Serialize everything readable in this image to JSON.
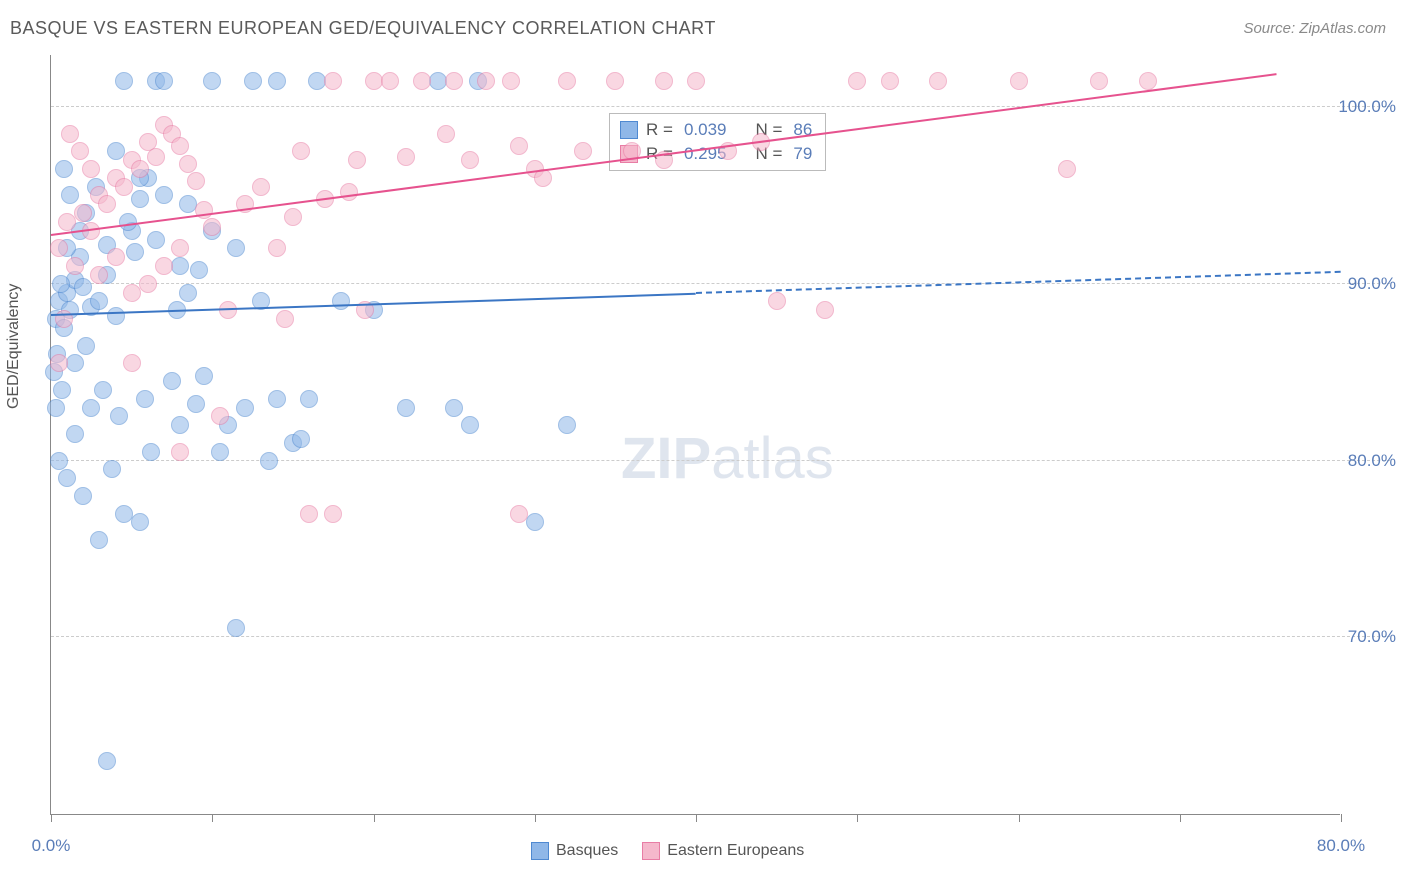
{
  "title": "BASQUE VS EASTERN EUROPEAN GED/EQUIVALENCY CORRELATION CHART",
  "source": "Source: ZipAtlas.com",
  "ylabel": "GED/Equivalency",
  "watermark_a": "ZIP",
  "watermark_b": "atlas",
  "chart": {
    "type": "scatter",
    "xlim": [
      0,
      80
    ],
    "ylim": [
      60,
      103
    ],
    "yticks": [
      70,
      80,
      90,
      100
    ],
    "ytick_labels": [
      "70.0%",
      "80.0%",
      "90.0%",
      "100.0%"
    ],
    "xticks": [
      0,
      10,
      20,
      30,
      40,
      50,
      60,
      70,
      80
    ],
    "xtick_labels_shown": {
      "0": "0.0%",
      "80": "80.0%"
    },
    "background": "#ffffff",
    "grid_color": "#cccccc",
    "axis_color": "#888888",
    "label_color": "#5a7db8",
    "point_radius": 9,
    "point_opacity": 0.55,
    "series": [
      {
        "name": "Basques",
        "fill": "#8fb7e8",
        "stroke": "#4f89d1",
        "trend_color": "#3b76c4",
        "trend": {
          "x1": 0,
          "y1": 88.2,
          "x2": 40,
          "y2": 89.4,
          "dash_to_x": 80,
          "dash_to_y": 90.6
        },
        "R": "0.039",
        "N": "86",
        "points": [
          [
            0.5,
            89.0
          ],
          [
            0.3,
            88.0
          ],
          [
            1.0,
            89.5
          ],
          [
            0.8,
            87.5
          ],
          [
            1.5,
            90.2
          ],
          [
            1.2,
            88.5
          ],
          [
            0.4,
            86.0
          ],
          [
            0.2,
            85.0
          ],
          [
            2.0,
            89.8
          ],
          [
            2.5,
            88.7
          ],
          [
            1.8,
            91.5
          ],
          [
            0.6,
            90.0
          ],
          [
            1.0,
            92.0
          ],
          [
            3.0,
            89.0
          ],
          [
            3.5,
            90.5
          ],
          [
            4.0,
            88.2
          ],
          [
            2.2,
            94.0
          ],
          [
            2.8,
            95.5
          ],
          [
            5.0,
            93.0
          ],
          [
            5.5,
            94.8
          ],
          [
            6.0,
            96.0
          ],
          [
            6.5,
            101.5
          ],
          [
            7.0,
            101.5
          ],
          [
            4.5,
            101.5
          ],
          [
            3.2,
            84.0
          ],
          [
            4.2,
            82.5
          ],
          [
            2.5,
            83.0
          ],
          [
            1.5,
            81.5
          ],
          [
            5.8,
            83.5
          ],
          [
            7.5,
            84.5
          ],
          [
            8.0,
            82.0
          ],
          [
            6.2,
            80.5
          ],
          [
            3.8,
            79.5
          ],
          [
            2.0,
            78.0
          ],
          [
            1.0,
            79.0
          ],
          [
            0.5,
            80.0
          ],
          [
            9.0,
            83.2
          ],
          [
            9.5,
            84.8
          ],
          [
            10.5,
            80.5
          ],
          [
            11.0,
            82.0
          ],
          [
            8.5,
            89.5
          ],
          [
            9.2,
            90.8
          ],
          [
            7.8,
            88.5
          ],
          [
            12.0,
            83.0
          ],
          [
            13.0,
            89.0
          ],
          [
            14.0,
            83.5
          ],
          [
            15.0,
            81.0
          ],
          [
            15.5,
            81.2
          ],
          [
            8.0,
            91.0
          ],
          [
            6.5,
            92.5
          ],
          [
            5.2,
            91.8
          ],
          [
            4.8,
            93.5
          ],
          [
            3.5,
            92.2
          ],
          [
            1.8,
            93.0
          ],
          [
            1.2,
            95.0
          ],
          [
            0.8,
            96.5
          ],
          [
            11.5,
            70.5
          ],
          [
            3.0,
            75.5
          ],
          [
            4.5,
            77.0
          ],
          [
            5.5,
            76.5
          ],
          [
            2.2,
            86.5
          ],
          [
            1.5,
            85.5
          ],
          [
            0.7,
            84.0
          ],
          [
            0.3,
            83.0
          ],
          [
            13.5,
            80.0
          ],
          [
            16.0,
            83.5
          ],
          [
            18.0,
            89.0
          ],
          [
            20.0,
            88.5
          ],
          [
            22.0,
            83.0
          ],
          [
            25.0,
            83.0
          ],
          [
            26.0,
            82.0
          ],
          [
            30.0,
            76.5
          ],
          [
            32.0,
            82.0
          ],
          [
            3.5,
            63.0
          ],
          [
            10.0,
            101.5
          ],
          [
            12.5,
            101.5
          ],
          [
            14.0,
            101.5
          ],
          [
            16.5,
            101.5
          ],
          [
            24.0,
            101.5
          ],
          [
            26.5,
            101.5
          ],
          [
            4.0,
            97.5
          ],
          [
            5.5,
            96.0
          ],
          [
            7.0,
            95.0
          ],
          [
            8.5,
            94.5
          ],
          [
            10.0,
            93.0
          ],
          [
            11.5,
            92.0
          ]
        ]
      },
      {
        "name": "Eastern Europeans",
        "fill": "#f5b8cc",
        "stroke": "#e87da5",
        "trend_color": "#e6528e",
        "trend": {
          "x1": 0,
          "y1": 92.7,
          "x2": 76,
          "y2": 101.8
        },
        "R": "0.295",
        "N": "79",
        "points": [
          [
            0.5,
            92.0
          ],
          [
            1.0,
            93.5
          ],
          [
            1.5,
            91.0
          ],
          [
            2.0,
            94.0
          ],
          [
            2.5,
            93.0
          ],
          [
            3.0,
            95.0
          ],
          [
            3.5,
            94.5
          ],
          [
            4.0,
            96.0
          ],
          [
            4.5,
            95.5
          ],
          [
            5.0,
            97.0
          ],
          [
            5.5,
            96.5
          ],
          [
            6.0,
            98.0
          ],
          [
            6.5,
            97.2
          ],
          [
            7.0,
            99.0
          ],
          [
            7.5,
            98.5
          ],
          [
            8.0,
            97.8
          ],
          [
            8.5,
            96.8
          ],
          [
            9.0,
            95.8
          ],
          [
            9.5,
            94.2
          ],
          [
            10.0,
            93.2
          ],
          [
            11.0,
            88.5
          ],
          [
            12.0,
            94.5
          ],
          [
            13.0,
            95.5
          ],
          [
            14.0,
            92.0
          ],
          [
            15.0,
            93.8
          ],
          [
            15.5,
            97.5
          ],
          [
            17.0,
            94.8
          ],
          [
            17.5,
            101.5
          ],
          [
            18.5,
            95.2
          ],
          [
            19.0,
            97.0
          ],
          [
            20.0,
            101.5
          ],
          [
            21.0,
            101.5
          ],
          [
            22.0,
            97.2
          ],
          [
            23.0,
            101.5
          ],
          [
            24.5,
            98.5
          ],
          [
            25.0,
            101.5
          ],
          [
            26.0,
            97.0
          ],
          [
            27.0,
            101.5
          ],
          [
            28.5,
            101.5
          ],
          [
            30.0,
            96.5
          ],
          [
            32.0,
            101.5
          ],
          [
            33.0,
            97.5
          ],
          [
            35.0,
            101.5
          ],
          [
            36.0,
            97.5
          ],
          [
            38.0,
            101.5
          ],
          [
            40.0,
            101.5
          ],
          [
            3.0,
            90.5
          ],
          [
            4.0,
            91.5
          ],
          [
            5.0,
            89.5
          ],
          [
            6.0,
            90.0
          ],
          [
            7.0,
            91.0
          ],
          [
            8.0,
            92.0
          ],
          [
            2.5,
            96.5
          ],
          [
            1.8,
            97.5
          ],
          [
            1.2,
            98.5
          ],
          [
            45.0,
            89.0
          ],
          [
            48.0,
            88.5
          ],
          [
            50.0,
            101.5
          ],
          [
            52.0,
            101.5
          ],
          [
            55.0,
            101.5
          ],
          [
            60.0,
            101.5
          ],
          [
            63.0,
            96.5
          ],
          [
            65.0,
            101.5
          ],
          [
            68.0,
            101.5
          ],
          [
            29.0,
            77.0
          ],
          [
            16.0,
            77.0
          ],
          [
            17.5,
            77.0
          ],
          [
            8.0,
            80.5
          ],
          [
            5.0,
            85.5
          ],
          [
            0.5,
            85.5
          ],
          [
            0.8,
            88.0
          ],
          [
            10.5,
            82.5
          ],
          [
            14.5,
            88.0
          ],
          [
            19.5,
            88.5
          ],
          [
            29.0,
            97.8
          ],
          [
            30.5,
            96.0
          ],
          [
            38.0,
            97.0
          ],
          [
            42.0,
            97.5
          ],
          [
            44.0,
            98.0
          ]
        ]
      }
    ]
  },
  "legend_labels": {
    "R_label": "R =",
    "N_label": "N ="
  },
  "bottom_legend": [
    "Basques",
    "Eastern Europeans"
  ]
}
